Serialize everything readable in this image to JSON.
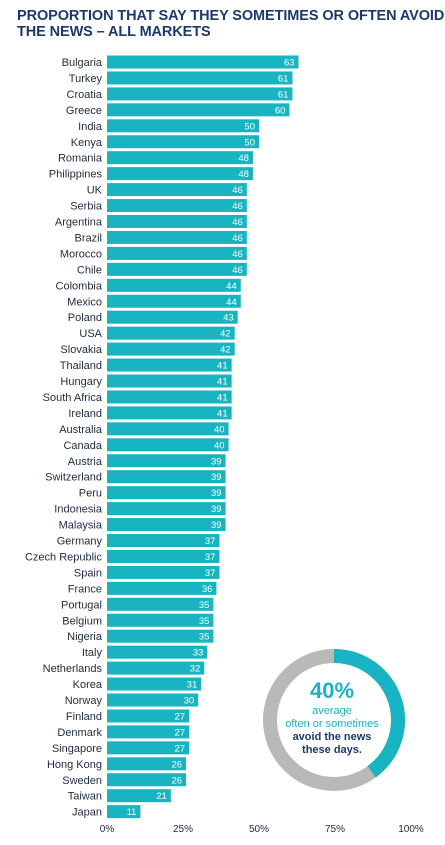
{
  "title": [
    "PROPORTION THAT SAY THEY SOMETIMES OR OFTEN AVOID",
    "THE NEWS – ALL MARKETS"
  ],
  "colors": {
    "bar": "#18b4c1",
    "title": "#1b3a6b",
    "ring_track": "#b9b9b9",
    "ring_fill": "#18b4c1"
  },
  "callout": {
    "value_label": "40%",
    "line1": "average",
    "line2": "often or sometimes",
    "line3": "avoid the news",
    "line4": "these days.",
    "fraction": 0.4
  },
  "chart_data": {
    "type": "bar",
    "orientation": "horizontal",
    "title": "PROPORTION THAT SAY THEY SOMETIMES OR OFTEN AVOID THE NEWS – ALL MARKETS",
    "categories": [
      "Bulgaria",
      "Turkey",
      "Croatia",
      "Greece",
      "India",
      "Kenya",
      "Romania",
      "Philippines",
      "UK",
      "Serbia",
      "Argentina",
      "Brazil",
      "Morocco",
      "Chile",
      "Colombia",
      "Mexico",
      "Poland",
      "USA",
      "Slovakia",
      "Thailand",
      "Hungary",
      "South Africa",
      "Ireland",
      "Australia",
      "Canada",
      "Austria",
      "Switzerland",
      "Peru",
      "Indonesia",
      "Malaysia",
      "Germany",
      "Czech Republic",
      "Spain",
      "France",
      "Portugal",
      "Belgium",
      "Nigeria",
      "Italy",
      "Netherlands",
      "Korea",
      "Norway",
      "Finland",
      "Denmark",
      "Singapore",
      "Hong Kong",
      "Sweden",
      "Taiwan",
      "Japan"
    ],
    "values": [
      63,
      61,
      61,
      60,
      50,
      50,
      48,
      48,
      46,
      46,
      46,
      46,
      46,
      46,
      44,
      44,
      43,
      42,
      42,
      41,
      41,
      41,
      41,
      40,
      40,
      39,
      39,
      39,
      39,
      39,
      37,
      37,
      37,
      36,
      35,
      35,
      35,
      33,
      32,
      31,
      30,
      27,
      27,
      27,
      26,
      26,
      21,
      11
    ],
    "xlim": [
      0,
      100
    ],
    "xticks": [
      "0%",
      "25%",
      "50%",
      "75%",
      "100%"
    ],
    "xlabel": "",
    "ylabel": "",
    "grid": false
  }
}
